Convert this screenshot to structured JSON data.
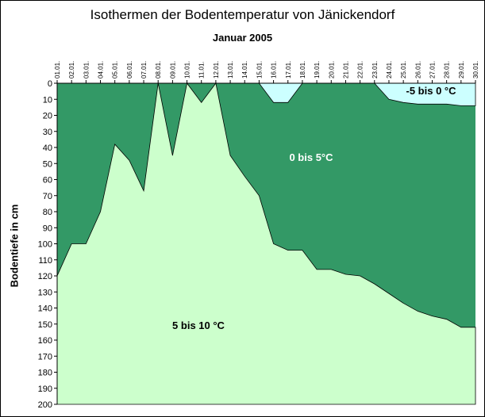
{
  "chart_data": {
    "type": "area",
    "title": "Isothermen der Bodentemperatur von Jänickendorf",
    "subtitle": "Januar 2005",
    "ylabel": "Bodentiefe in cm",
    "xlabel": "",
    "ylim": [
      0,
      200
    ],
    "y_inverted": true,
    "y_ticks": [
      0,
      10,
      20,
      30,
      40,
      50,
      60,
      70,
      80,
      90,
      100,
      110,
      120,
      130,
      140,
      150,
      160,
      170,
      180,
      190,
      200
    ],
    "categories": [
      "01.01.",
      "02.01.",
      "03.01.",
      "04.01.",
      "05.01.",
      "06.01.",
      "07.01.",
      "08.01.",
      "09.01.",
      "10.01.",
      "11.01.",
      "12.01.",
      "13.01.",
      "14.01.",
      "15.01.",
      "16.01.",
      "17.01.",
      "18.01.",
      "19.01.",
      "20.01.",
      "21.01.",
      "22.01.",
      "23.01.",
      "24.01.",
      "25.01.",
      "26.01.",
      "27.01.",
      "28.01.",
      "29.01.",
      "30.01."
    ],
    "series": [
      {
        "name": "5 bis 10 °C",
        "color": "#ccffcc",
        "boundary_depth_5C": [
          120,
          100,
          100,
          80,
          38,
          48,
          67,
          0,
          45,
          0,
          12,
          0,
          45,
          58,
          70,
          100,
          104,
          104,
          116,
          116,
          119,
          120,
          125,
          131,
          137,
          142,
          145,
          147,
          152,
          152
        ]
      },
      {
        "name": "0 bis 5°C",
        "color": "#339966"
      },
      {
        "name": "-5 bis 0 °C",
        "color": "#ccffff",
        "boundary_depth_0C": [
          0,
          0,
          0,
          0,
          0,
          0,
          0,
          0,
          0,
          0,
          0,
          0,
          0,
          0,
          0,
          12,
          12,
          0,
          0,
          0,
          0,
          0,
          0,
          10,
          12,
          13,
          13,
          13,
          14,
          14
        ]
      }
    ],
    "grid": false,
    "legend": "none"
  }
}
